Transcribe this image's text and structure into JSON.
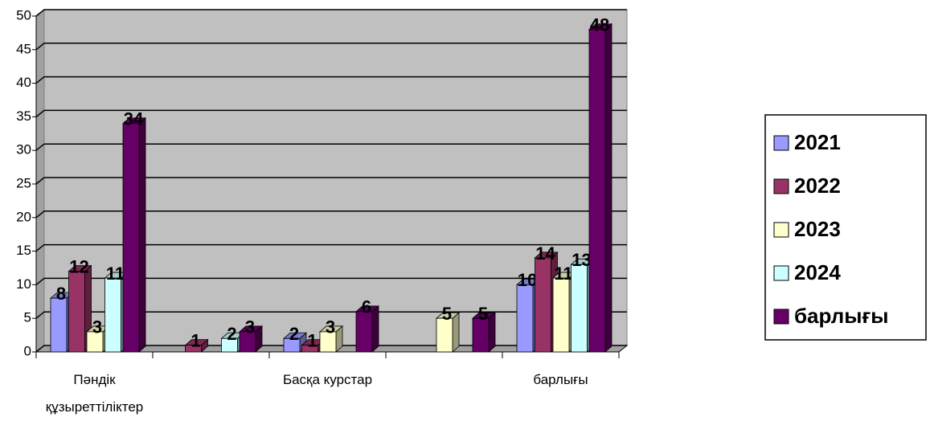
{
  "chart_data": {
    "type": "bar3d",
    "categories": [
      "Пәндік құзыреттіліктер",
      null,
      "Басқа курстар",
      null,
      "барлығы"
    ],
    "series": [
      {
        "name": "2021",
        "color": "#9999ff",
        "values": [
          8,
          null,
          2,
          null,
          10
        ]
      },
      {
        "name": "2022",
        "color": "#993366",
        "values": [
          12,
          1,
          1,
          null,
          14
        ]
      },
      {
        "name": "2023",
        "color": "#ffffcc",
        "values": [
          3,
          null,
          3,
          5,
          11
        ]
      },
      {
        "name": "2024",
        "color": "#ccffff",
        "values": [
          11,
          2,
          null,
          null,
          13
        ]
      },
      {
        "name": "барлығы",
        "color": "#660066",
        "values": [
          34,
          3,
          6,
          5,
          48
        ]
      }
    ],
    "ylim": [
      0,
      50
    ],
    "yticks": [
      0,
      5,
      10,
      15,
      20,
      25,
      30,
      35,
      40,
      45,
      50
    ],
    "grid": true,
    "legend": "right"
  }
}
